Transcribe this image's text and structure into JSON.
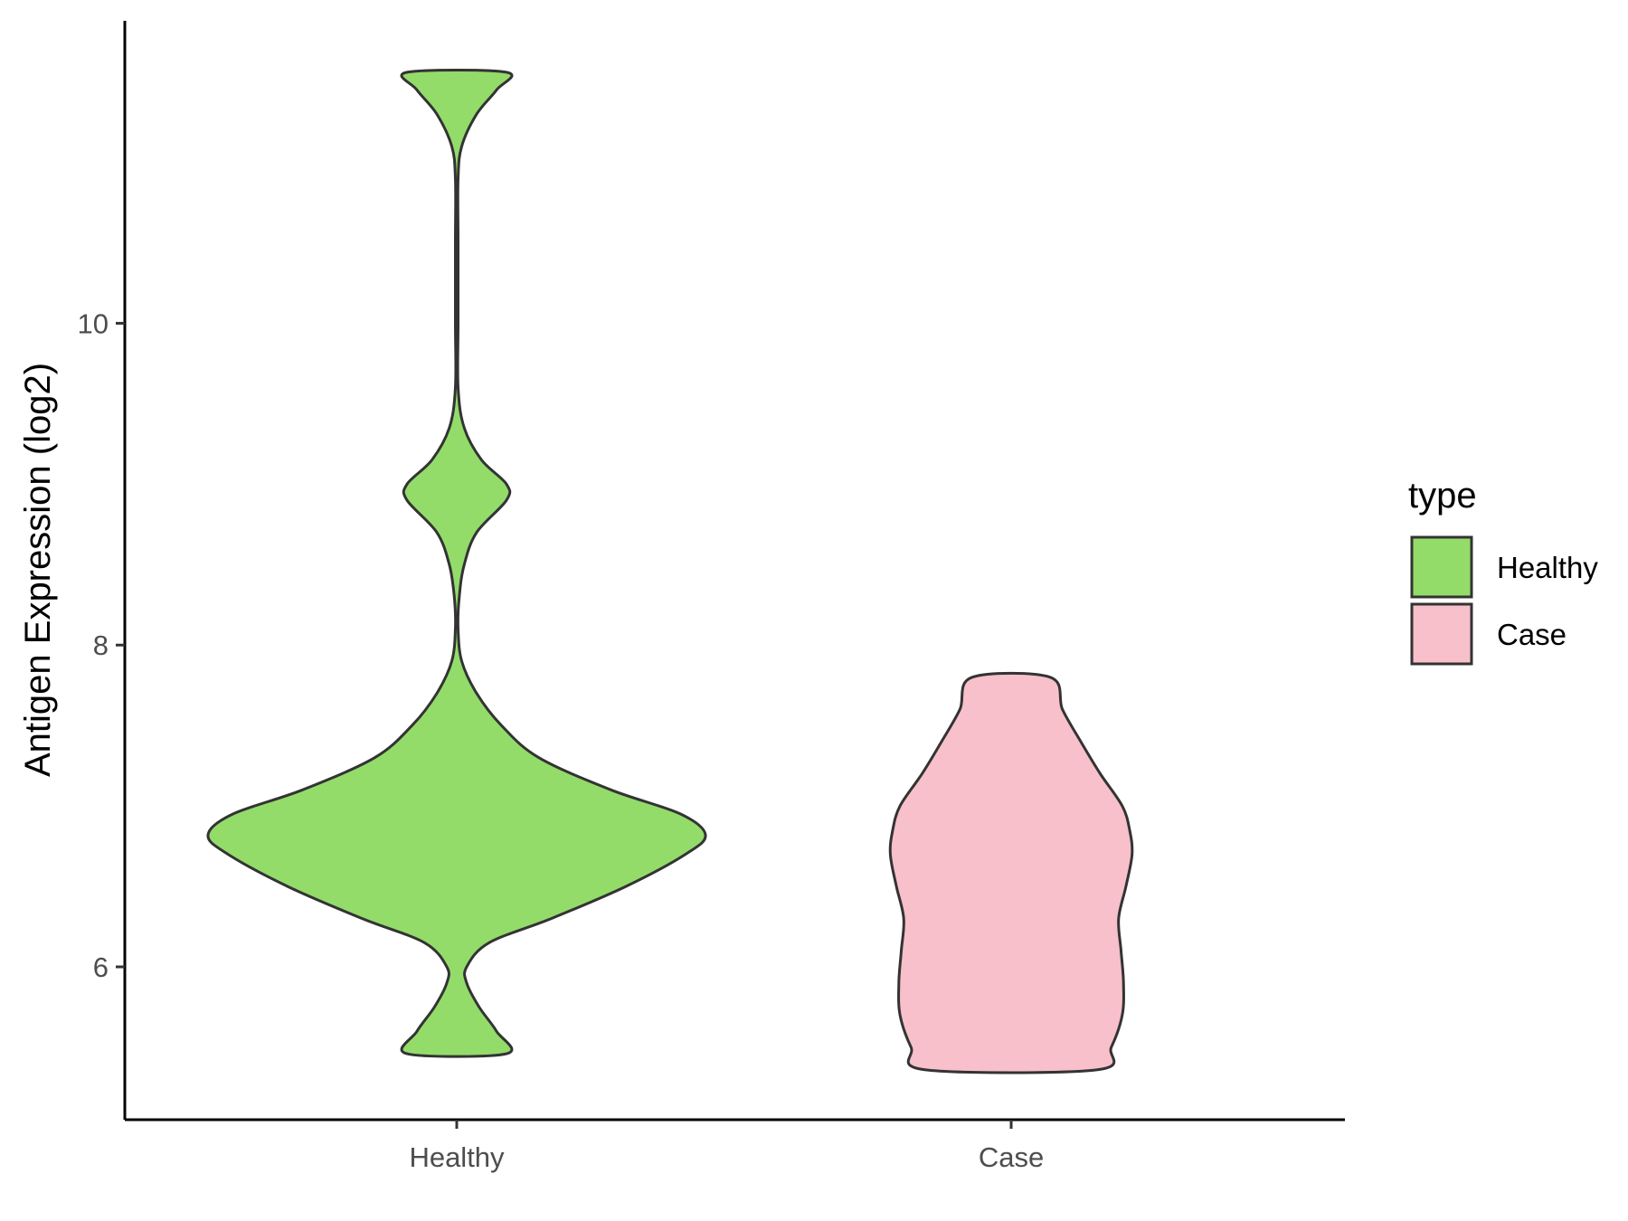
{
  "chart_data": {
    "type": "violin",
    "xlabel": "",
    "ylabel": "Antigen Expression (log2)",
    "categories": [
      "Healthy",
      "Case"
    ],
    "yticks": [
      6,
      8,
      10
    ],
    "ylim": [
      5.05,
      11.88
    ],
    "grid": false,
    "legend": {
      "title": "type",
      "position": "right",
      "entries": [
        {
          "label": "Healthy",
          "color": "#93dc6a"
        },
        {
          "label": "Case",
          "color": "#f7c0cb"
        }
      ]
    },
    "series": [
      {
        "name": "Healthy",
        "color": "#93dc6a",
        "min": 5.46,
        "max": 11.56,
        "profile": [
          [
            5.46,
            0.2
          ],
          [
            5.6,
            0.16
          ],
          [
            5.75,
            0.09
          ],
          [
            5.9,
            0.04
          ],
          [
            6.0,
            0.04
          ],
          [
            6.15,
            0.13
          ],
          [
            6.3,
            0.38
          ],
          [
            6.5,
            0.68
          ],
          [
            6.7,
            0.92
          ],
          [
            6.82,
            1.0
          ],
          [
            6.95,
            0.9
          ],
          [
            7.1,
            0.62
          ],
          [
            7.3,
            0.33
          ],
          [
            7.5,
            0.18
          ],
          [
            7.7,
            0.08
          ],
          [
            7.9,
            0.02
          ],
          [
            8.1,
            0.005
          ],
          [
            8.3,
            0.01
          ],
          [
            8.5,
            0.03
          ],
          [
            8.7,
            0.08
          ],
          [
            8.9,
            0.2
          ],
          [
            9.0,
            0.2
          ],
          [
            9.15,
            0.1
          ],
          [
            9.35,
            0.03
          ],
          [
            9.6,
            0.005
          ],
          [
            10.0,
            0.005
          ],
          [
            10.5,
            0.005
          ],
          [
            10.9,
            0.005
          ],
          [
            11.1,
            0.02
          ],
          [
            11.3,
            0.08
          ],
          [
            11.45,
            0.16
          ],
          [
            11.56,
            0.2
          ]
        ]
      },
      {
        "name": "Case",
        "color": "#f7c0cb",
        "min": 5.36,
        "max": 7.8,
        "profile": [
          [
            5.36,
            0.7
          ],
          [
            5.5,
            0.82
          ],
          [
            5.7,
            0.91
          ],
          [
            5.9,
            0.92
          ],
          [
            6.1,
            0.9
          ],
          [
            6.3,
            0.88
          ],
          [
            6.5,
            0.94
          ],
          [
            6.7,
            0.99
          ],
          [
            6.85,
            0.97
          ],
          [
            7.0,
            0.91
          ],
          [
            7.2,
            0.73
          ],
          [
            7.4,
            0.57
          ],
          [
            7.6,
            0.42
          ],
          [
            7.8,
            0.32
          ]
        ]
      }
    ]
  }
}
